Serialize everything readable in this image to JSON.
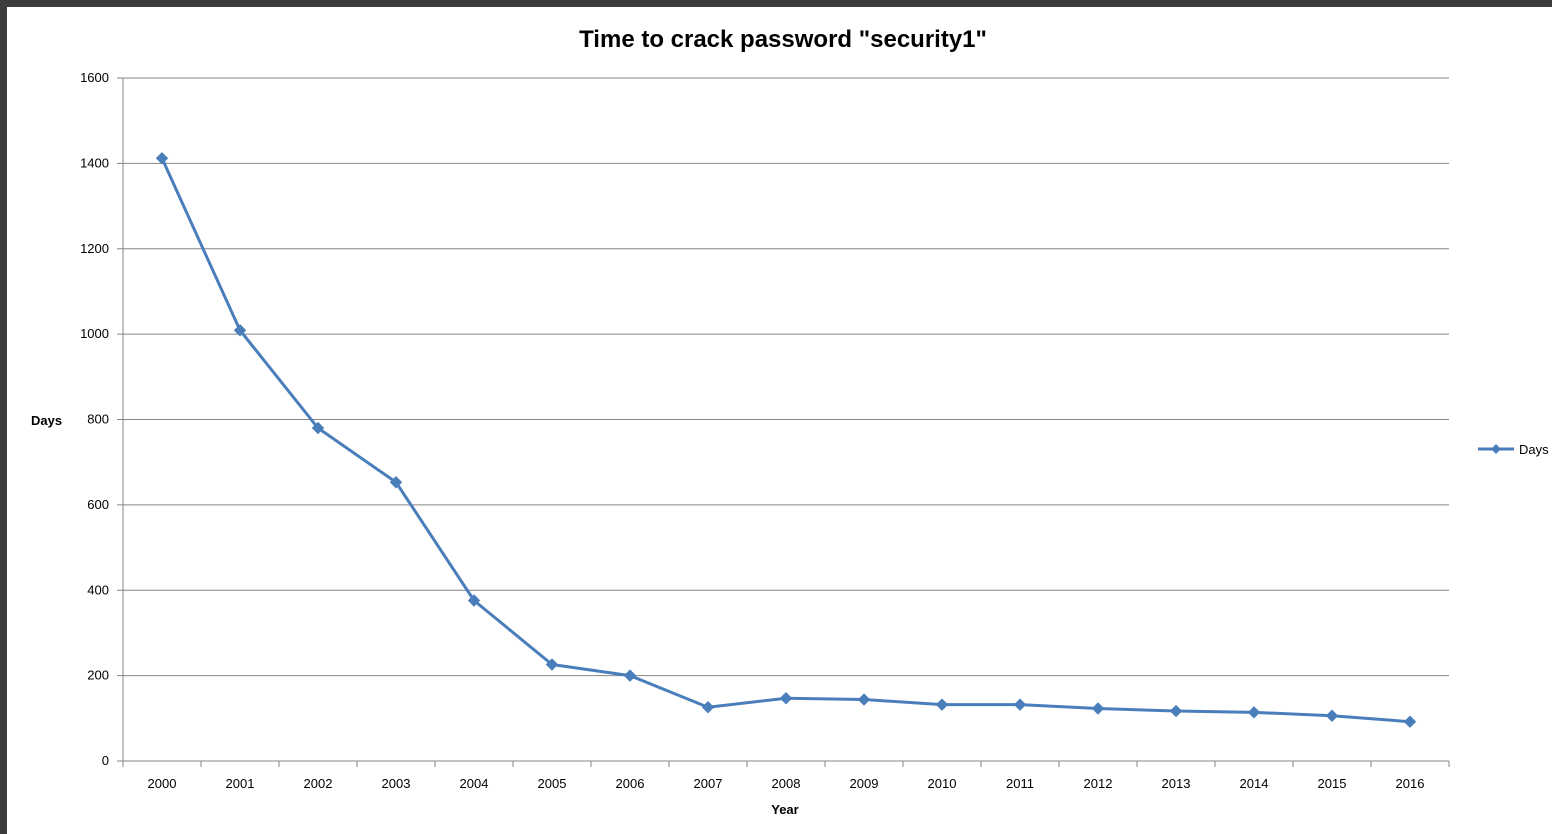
{
  "chart_data": {
    "type": "line",
    "title": "Time to crack password \"security1\"",
    "xlabel": "Year",
    "ylabel": "Days",
    "categories": [
      "2000",
      "2001",
      "2002",
      "2003",
      "2004",
      "2005",
      "2006",
      "2007",
      "2008",
      "2009",
      "2010",
      "2011",
      "2012",
      "2013",
      "2014",
      "2015",
      "2016"
    ],
    "series": [
      {
        "name": "Days",
        "color": "#4a7ebb",
        "marker": "diamond",
        "values": [
          1412,
          1009,
          780,
          653,
          376,
          226,
          200,
          126,
          147,
          144,
          132,
          132,
          123,
          117,
          114,
          106,
          92
        ]
      }
    ],
    "ylim": [
      0,
      1600
    ],
    "yticks": [
      0,
      200,
      400,
      600,
      800,
      1000,
      1200,
      1400,
      1600
    ],
    "grid": "horizontal",
    "legend": "right",
    "colors": {
      "gridline": "#868686",
      "axis": "#868686",
      "series": "#4a7ebb"
    }
  }
}
